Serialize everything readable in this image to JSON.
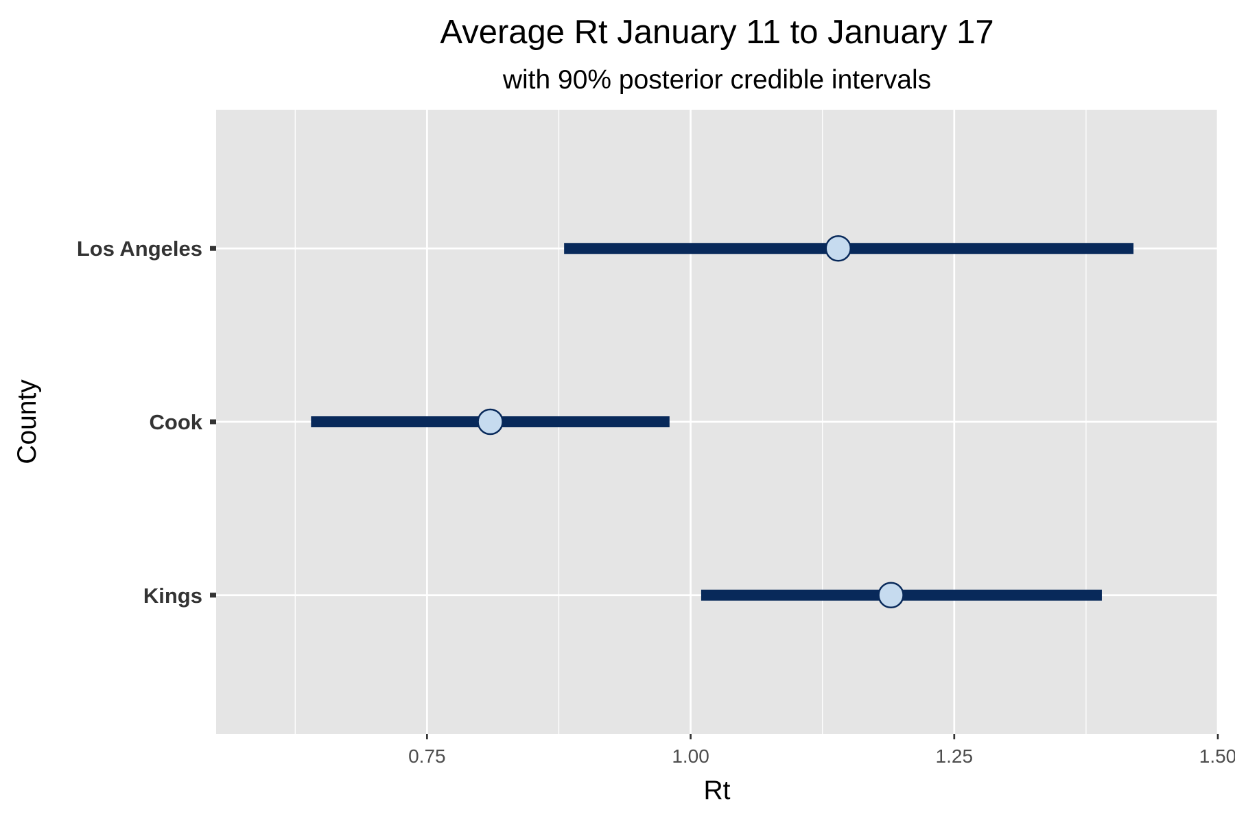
{
  "chart_data": {
    "type": "interval",
    "title": "Average Rt January 11 to January 17",
    "subtitle": "with 90% posterior credible intervals",
    "xlabel": "Rt",
    "ylabel": "County",
    "x_ticks": [
      0.75,
      1.0,
      1.25,
      1.5
    ],
    "x_tick_labels": [
      "0.75",
      "1.00",
      "1.25",
      "1.50"
    ],
    "xlim": [
      0.55,
      1.5
    ],
    "grid": true,
    "legend": "none",
    "categories": [
      "Kings",
      "Cook",
      "Los Angeles"
    ],
    "points": [
      {
        "county": "Kings",
        "estimate": 1.19,
        "lower": 1.01,
        "upper": 1.39
      },
      {
        "county": "Cook",
        "estimate": 0.81,
        "lower": 0.64,
        "upper": 0.98
      },
      {
        "county": "Los Angeles",
        "estimate": 1.14,
        "lower": 0.88,
        "upper": 1.42
      }
    ],
    "colors": {
      "panel_background": "#e5e5e5",
      "grid": "#ffffff",
      "interval": "#08295a",
      "point_fill": "#c6dbef",
      "point_stroke": "#08295a"
    }
  }
}
